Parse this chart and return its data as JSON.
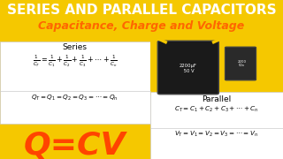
{
  "bg_color": "#f5c800",
  "title1": "SERIES AND PARALLEL CAPACITORS",
  "title2": "Capacitance, Charge and Voltage",
  "title1_color": "#ffffff",
  "title2_color": "#ff6600",
  "title1_fontsize": 11,
  "title2_fontsize": 9,
  "series_label": "Series",
  "parallel_label": "Parallel",
  "qcv_text": "Q=CV",
  "box_bg": "#ffffff",
  "text_color": "#000000",
  "qcv_color": "#ff4400",
  "cap_body_color": "#1a1a1a",
  "cap_edge_color": "#444444",
  "cap_text_color": "#ffffff",
  "lead_color": "#f5c800",
  "divider_color": "#cccccc"
}
